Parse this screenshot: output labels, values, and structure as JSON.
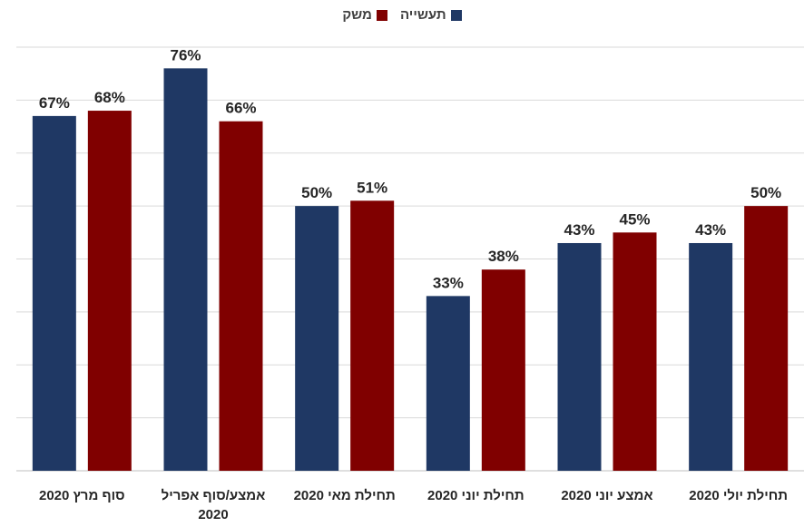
{
  "chart_data": {
    "type": "bar",
    "categories": [
      "סוף מרץ 2020",
      "אמצע/סוף אפריל 2020",
      "תחילת מאי 2020",
      "תחילת יוני 2020",
      "אמצע יוני 2020",
      "תחילת יולי 2020"
    ],
    "category_lines": [
      [
        "סוף מרץ 2020"
      ],
      [
        "אמצע/סוף אפריל",
        "2020"
      ],
      [
        "תחילת מאי 2020"
      ],
      [
        "תחילת יוני 2020"
      ],
      [
        "אמצע יוני 2020"
      ],
      [
        "תחילת יולי 2020"
      ]
    ],
    "series": [
      {
        "name": "תעשייה",
        "color": "#1f3864",
        "values": [
          67,
          76,
          50,
          33,
          43,
          43
        ],
        "labels": [
          "67%",
          "76%",
          "50%",
          "33%",
          "43%",
          "43%"
        ]
      },
      {
        "name": "משק",
        "color": "#800000",
        "values": [
          68,
          66,
          51,
          38,
          45,
          50
        ],
        "labels": [
          "68%",
          "66%",
          "51%",
          "38%",
          "45%",
          "50%"
        ]
      }
    ],
    "ylim": [
      0,
      80
    ],
    "y_gridline_step": 10,
    "grid": true,
    "legend_position": "top-center",
    "title": "",
    "xlabel": "",
    "ylabel": ""
  }
}
